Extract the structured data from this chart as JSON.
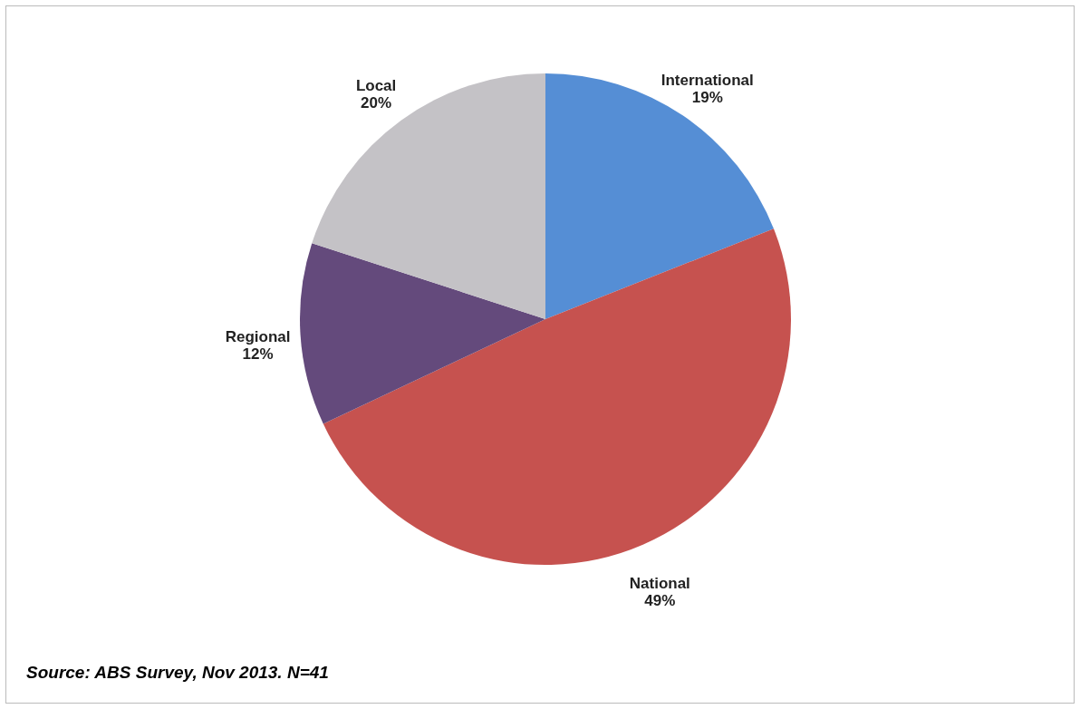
{
  "chart_data": {
    "type": "pie",
    "categories": [
      "International",
      "National",
      "Regional",
      "Local"
    ],
    "values": [
      19,
      49,
      12,
      20
    ],
    "colors": [
      "#558ed5",
      "#c6524f",
      "#644a7c",
      "#c4c2c6"
    ],
    "value_labels": [
      "19%",
      "49%",
      "12%",
      "20%"
    ],
    "annotations": [
      "Source: ABS Survey, Nov  2013. N=41"
    ]
  }
}
